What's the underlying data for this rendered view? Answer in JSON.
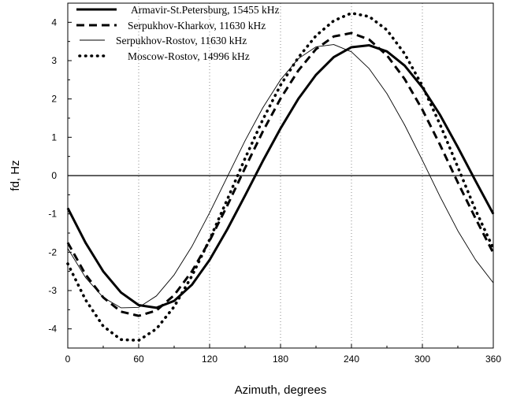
{
  "chart_data": {
    "type": "line",
    "xlabel": "Azimuth,  degrees",
    "ylabel": "fd, Hz",
    "xlim": [
      0,
      360
    ],
    "ylim": [
      -4.5,
      4.5
    ],
    "x_ticks": [
      0,
      60,
      120,
      180,
      240,
      300,
      360
    ],
    "y_ticks": [
      -4,
      -3,
      -2,
      -1,
      0,
      1,
      2,
      3,
      4
    ],
    "grid": "dotted vertical lines at x = 60, 120, 180, 240, 300",
    "reference_line": 0,
    "legend_position": "top-left, above plot",
    "series": [
      {
        "name": "Armavir-St.Petersburg, 15455 kHz",
        "style": "solid-thick",
        "x": [
          0,
          15,
          30,
          45,
          60,
          75,
          90,
          105,
          120,
          135,
          150,
          165,
          180,
          195,
          210,
          225,
          240,
          255,
          270,
          285,
          300,
          315,
          330,
          345,
          360
        ],
        "y": [
          -0.85,
          -1.75,
          -2.5,
          -3.05,
          -3.38,
          -3.45,
          -3.27,
          -2.85,
          -2.2,
          -1.4,
          -0.52,
          0.38,
          1.23,
          2.0,
          2.63,
          3.09,
          3.35,
          3.4,
          3.24,
          2.87,
          2.3,
          1.58,
          0.74,
          -0.14,
          -1.0
        ]
      },
      {
        "name": "Serpukhov-Kharkov,  11630 kHz",
        "style": "dashed-thick",
        "x": [
          0,
          15,
          30,
          45,
          60,
          75,
          90,
          105,
          120,
          135,
          150,
          165,
          180,
          195,
          210,
          225,
          240,
          255,
          270,
          285,
          300,
          315,
          330,
          345,
          360
        ],
        "y": [
          -1.75,
          -2.58,
          -3.18,
          -3.55,
          -3.66,
          -3.52,
          -3.12,
          -2.5,
          -1.7,
          -0.78,
          0.2,
          1.15,
          2.01,
          2.74,
          3.3,
          3.63,
          3.72,
          3.55,
          3.14,
          2.52,
          1.72,
          0.8,
          -0.18,
          -1.12,
          -2.02
        ]
      },
      {
        "name": "Serpukhov-Rostov,  11630 kHz",
        "style": "solid-thin",
        "x": [
          0,
          15,
          30,
          45,
          60,
          75,
          90,
          105,
          120,
          135,
          150,
          165,
          180,
          195,
          210,
          225,
          240,
          255,
          270,
          285,
          300,
          315,
          330,
          345,
          360
        ],
        "y": [
          -1.9,
          -2.66,
          -3.18,
          -3.45,
          -3.44,
          -3.14,
          -2.59,
          -1.85,
          -0.97,
          -0.03,
          0.91,
          1.77,
          2.5,
          3.05,
          3.36,
          3.42,
          3.23,
          2.79,
          2.14,
          1.32,
          0.4,
          -0.55,
          -1.44,
          -2.2,
          -2.8
        ]
      },
      {
        "name": "Moscow-Rostov,  14996 kHz",
        "style": "dotted-thick",
        "x": [
          0,
          15,
          30,
          45,
          60,
          75,
          90,
          105,
          120,
          135,
          150,
          165,
          180,
          195,
          210,
          225,
          240,
          255,
          270,
          285,
          300,
          315,
          330,
          345,
          360
        ],
        "y": [
          -2.3,
          -3.24,
          -3.93,
          -4.28,
          -4.3,
          -4.0,
          -3.42,
          -2.62,
          -1.67,
          -0.62,
          0.45,
          1.46,
          2.36,
          3.08,
          3.65,
          4.04,
          4.24,
          4.15,
          3.8,
          3.18,
          2.34,
          1.33,
          0.22,
          -0.9,
          -1.9
        ]
      }
    ]
  }
}
